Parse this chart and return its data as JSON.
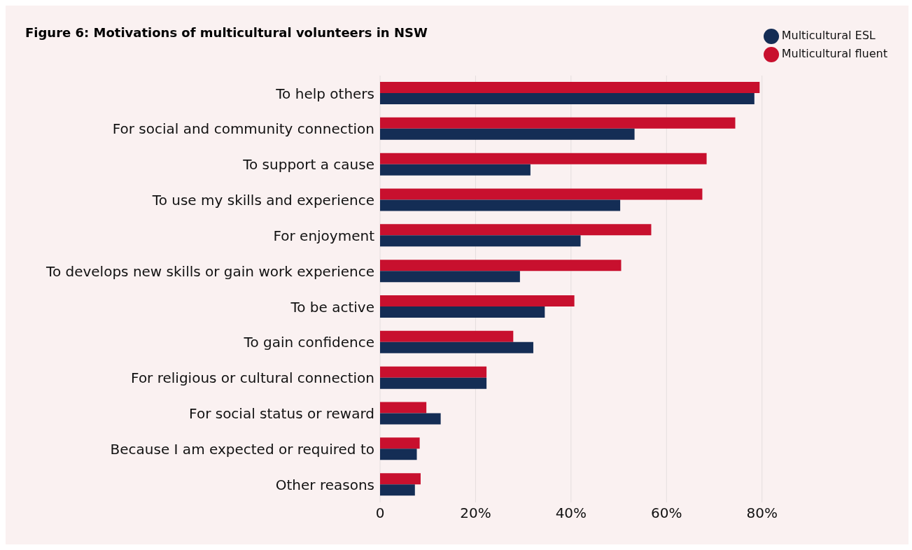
{
  "chart_data": {
    "type": "bar",
    "orientation": "horizontal",
    "title": "Figure 6: Motivations of multicultural volunteers in NSW",
    "categories": [
      "To help others",
      "For social and community connection",
      "To support a cause",
      "To use my skills and experience",
      "For enjoyment",
      "To develops new skills or gain work experience",
      "To be active",
      "To gain confidence",
      "For religious or cultural connection",
      "For social status or reward",
      "Because I am expected  or required to",
      "Other reasons"
    ],
    "series": [
      {
        "name": "Multicultural fluent",
        "color": "#c8102e",
        "values": [
          79.5,
          74.4,
          68.4,
          67.5,
          56.8,
          50.5,
          40.7,
          27.9,
          22.3,
          9.7,
          8.3,
          8.5
        ]
      },
      {
        "name": "Multicultural ESL",
        "color": "#142d55",
        "values": [
          78.4,
          53.3,
          31.5,
          50.3,
          42.0,
          29.3,
          34.5,
          32.1,
          22.3,
          12.7,
          7.7,
          7.3
        ]
      }
    ],
    "xlim": [
      0,
      80
    ],
    "xticks": [
      0,
      {
        "value": 20,
        "label": "20%"
      },
      {
        "value": 40,
        "label": "40%"
      },
      {
        "value": 60,
        "label": "60%"
      },
      {
        "value": 80,
        "label": "80%"
      }
    ],
    "grid": "x",
    "legend": "top right"
  }
}
